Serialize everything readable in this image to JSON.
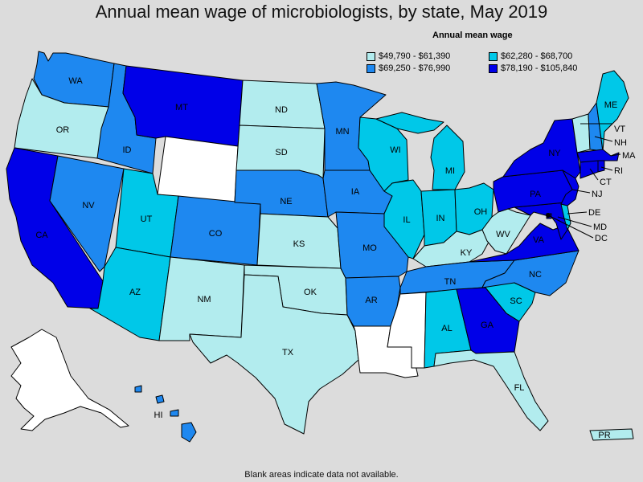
{
  "title": "Annual mean wage of microbiologists, by state, May 2019",
  "legend": {
    "title": "Annual mean wage",
    "items": [
      {
        "label": "$49,790 - $61,390",
        "color": "#b2ecee"
      },
      {
        "label": "$62,280 - $68,700",
        "color": "#00c8e8"
      },
      {
        "label": "$69,250 - $76,990",
        "color": "#1e88f0"
      },
      {
        "label": "$78,190 - $105,840",
        "color": "#0000e8"
      }
    ]
  },
  "footnote": "Blank areas indicate data not available.",
  "no_data_color": "#ffffff",
  "states": {
    "WA": {
      "label": "WA",
      "bin": 3
    },
    "OR": {
      "label": "OR",
      "bin": 1
    },
    "CA": {
      "label": "CA",
      "bin": 4
    },
    "ID": {
      "label": "ID",
      "bin": 3
    },
    "NV": {
      "label": "NV",
      "bin": 3
    },
    "MT": {
      "label": "MT",
      "bin": 4
    },
    "WY": {
      "label": "",
      "bin": 0
    },
    "UT": {
      "label": "UT",
      "bin": 2
    },
    "AZ": {
      "label": "AZ",
      "bin": 2
    },
    "CO": {
      "label": "CO",
      "bin": 3
    },
    "NM": {
      "label": "NM",
      "bin": 1
    },
    "ND": {
      "label": "ND",
      "bin": 1
    },
    "SD": {
      "label": "SD",
      "bin": 1
    },
    "NE": {
      "label": "NE",
      "bin": 3
    },
    "KS": {
      "label": "KS",
      "bin": 1
    },
    "OK": {
      "label": "OK",
      "bin": 1
    },
    "TX": {
      "label": "TX",
      "bin": 1
    },
    "MN": {
      "label": "MN",
      "bin": 3
    },
    "IA": {
      "label": "IA",
      "bin": 3
    },
    "MO": {
      "label": "MO",
      "bin": 3
    },
    "AR": {
      "label": "AR",
      "bin": 3
    },
    "LA": {
      "label": "",
      "bin": 0
    },
    "WI": {
      "label": "WI",
      "bin": 2
    },
    "IL": {
      "label": "IL",
      "bin": 2
    },
    "MS": {
      "label": "",
      "bin": 0
    },
    "MI": {
      "label": "MI",
      "bin": 2
    },
    "IN": {
      "label": "IN",
      "bin": 2
    },
    "OH": {
      "label": "OH",
      "bin": 2
    },
    "KY": {
      "label": "KY",
      "bin": 1
    },
    "TN": {
      "label": "TN",
      "bin": 3
    },
    "AL": {
      "label": "AL",
      "bin": 2
    },
    "GA": {
      "label": "GA",
      "bin": 4
    },
    "FL": {
      "label": "FL",
      "bin": 1
    },
    "SC": {
      "label": "SC",
      "bin": 2
    },
    "NC": {
      "label": "NC",
      "bin": 3
    },
    "VA": {
      "label": "VA",
      "bin": 4
    },
    "WV": {
      "label": "WV",
      "bin": 1
    },
    "PA": {
      "label": "PA",
      "bin": 4
    },
    "NY": {
      "label": "NY",
      "bin": 4
    },
    "NJ": {
      "label": "NJ",
      "bin": 4
    },
    "DE": {
      "label": "DE",
      "bin": 2
    },
    "MD": {
      "label": "MD",
      "bin": 4
    },
    "DC": {
      "label": "DC",
      "bin": 4
    },
    "VT": {
      "label": "VT",
      "bin": 1
    },
    "NH": {
      "label": "NH",
      "bin": 3
    },
    "ME": {
      "label": "ME",
      "bin": 2
    },
    "MA": {
      "label": "MA",
      "bin": 4
    },
    "CT": {
      "label": "CT",
      "bin": 4
    },
    "RI": {
      "label": "RI",
      "bin": 4
    },
    "AK": {
      "label": "",
      "bin": 0
    },
    "HI": {
      "label": "HI",
      "bin": 3
    },
    "PR": {
      "label": "PR",
      "bin": 1
    }
  }
}
